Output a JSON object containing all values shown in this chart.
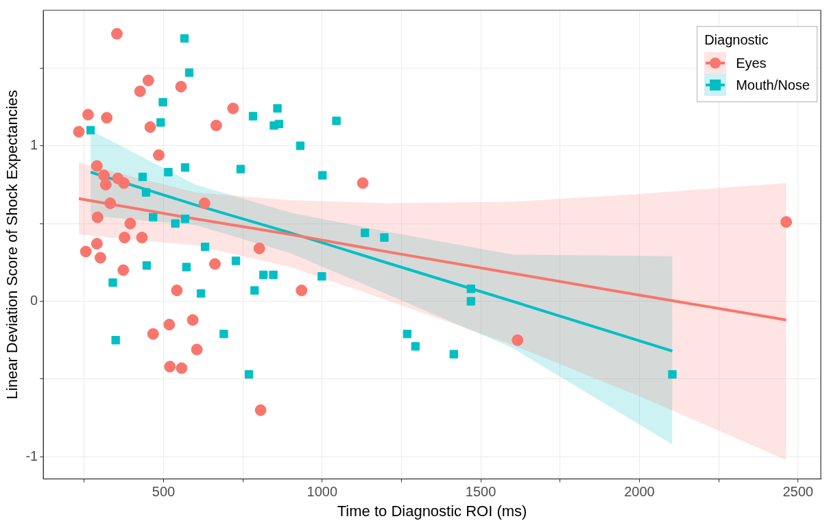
{
  "chart_data": {
    "type": "scatter",
    "xlabel": "Time to Diagnostic ROI (ms)",
    "ylabel": "Linear Deviation Score of Shock Expectancies",
    "legend_title": "Diagnostic",
    "legend": "top right",
    "grid": true,
    "xlim": [
      121,
      2572
    ],
    "ylim": [
      -1.142,
      1.871
    ],
    "xticks": [
      {
        "value": 250,
        "label": null
      },
      500,
      {
        "value": 750,
        "label": null
      },
      1000,
      {
        "value": 1250,
        "label": null
      },
      1500,
      {
        "value": 1750,
        "label": null
      },
      2000,
      {
        "value": 2250,
        "label": null
      },
      2500
    ],
    "yticks": [
      {
        "value": -1,
        "label": "-1"
      },
      {
        "value": -0.5,
        "label": null
      },
      {
        "value": 0,
        "label": "0"
      },
      {
        "value": 0.5,
        "label": null
      },
      {
        "value": 1,
        "label": "1"
      },
      {
        "value": 1.5,
        "label": null
      }
    ],
    "series": [
      {
        "name": "Eyes",
        "type": "scatter",
        "marker": "circle",
        "color": "#f8766d",
        "x": [
          233,
          255,
          262,
          290,
          292,
          290,
          301,
          312,
          318,
          321,
          332,
          353,
          356,
          373,
          375,
          377,
          395,
          426,
          432,
          452,
          458,
          467,
          485,
          518,
          520,
          542,
          555,
          557,
          592,
          605,
          629,
          662,
          666,
          719,
          802,
          806,
          935,
          1128,
          1616,
          2463
        ],
        "values": [
          1.09,
          0.32,
          1.2,
          0.87,
          0.54,
          0.37,
          0.28,
          0.81,
          0.75,
          1.18,
          0.63,
          1.72,
          0.79,
          0.2,
          0.76,
          0.41,
          0.5,
          1.35,
          0.41,
          1.42,
          1.12,
          -0.21,
          0.94,
          -0.15,
          -0.42,
          0.07,
          1.38,
          -0.43,
          -0.12,
          -0.31,
          0.63,
          0.24,
          1.13,
          1.24,
          0.34,
          -0.7,
          0.07,
          0.76,
          -0.25,
          0.51
        ]
      },
      {
        "name": "Mouth/Nose",
        "type": "scatter",
        "marker": "square",
        "color": "#00bfc4",
        "x": [
          270,
          340,
          349,
          434,
          445,
          447,
          467,
          491,
          498,
          515,
          537,
          568,
          568,
          572,
          581,
          566,
          618,
          631,
          690,
          728,
          743,
          769,
          782,
          787,
          815,
          846,
          848,
          859,
          864,
          931,
          999,
          1001,
          1045,
          1135,
          1196,
          1268,
          1294,
          1415,
          1469,
          1469,
          2104
        ],
        "values": [
          1.1,
          0.12,
          -0.25,
          0.8,
          0.7,
          0.23,
          0.54,
          1.15,
          1.28,
          0.83,
          0.5,
          0.86,
          0.53,
          0.22,
          1.47,
          1.69,
          0.05,
          0.35,
          -0.21,
          0.26,
          0.85,
          -0.47,
          1.19,
          0.07,
          0.17,
          0.17,
          1.13,
          1.24,
          1.14,
          1.0,
          0.16,
          0.81,
          1.16,
          0.44,
          0.41,
          -0.21,
          -0.29,
          -0.34,
          0.08,
          0.0,
          -0.47
        ]
      },
      {
        "type": "line",
        "marker": "none",
        "color": "#f8766d",
        "x": [
          233,
          600,
          900,
          1200,
          1600,
          2000,
          2463
        ],
        "values": [
          0.66,
          0.53,
          0.43,
          0.32,
          0.18,
          0.04,
          -0.12
        ],
        "lower": [
          0.43,
          0.36,
          0.22,
          0.01,
          -0.28,
          -0.61,
          -1.02
        ],
        "upper": [
          0.89,
          0.7,
          0.65,
          0.63,
          0.64,
          0.69,
          0.76
        ]
      },
      {
        "type": "line",
        "marker": "none",
        "color": "#00bfc4",
        "x": [
          270,
          600,
          900,
          1200,
          1600,
          2104
        ],
        "values": [
          0.83,
          0.62,
          0.44,
          0.25,
          0.0,
          -0.32
        ],
        "lower": [
          0.55,
          0.49,
          0.31,
          0.05,
          -0.3,
          -0.92
        ],
        "upper": [
          1.1,
          0.75,
          0.57,
          0.45,
          0.3,
          0.29
        ]
      }
    ]
  }
}
